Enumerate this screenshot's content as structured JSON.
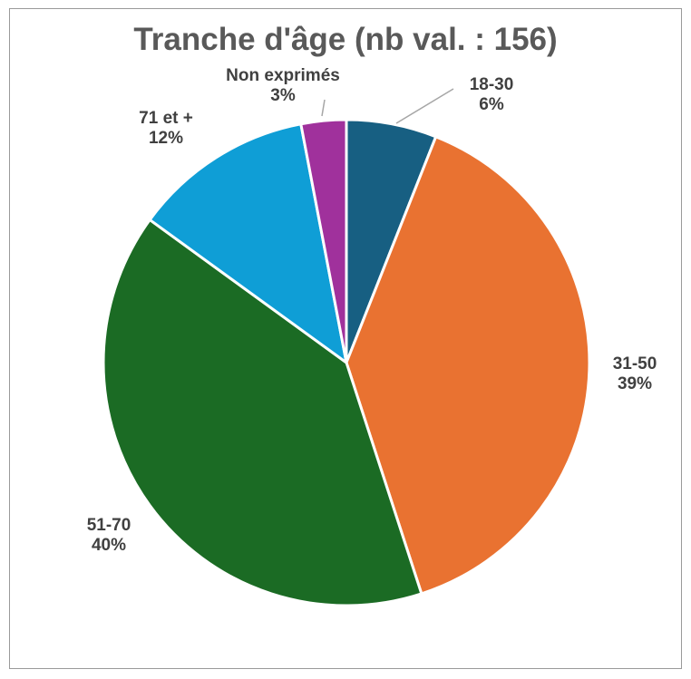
{
  "chart_data": {
    "type": "pie",
    "title": "Tranche d'âge (nb val. : 156)",
    "slices": [
      {
        "label": "18-30",
        "value": 6,
        "display": "6%",
        "color": "#175f82"
      },
      {
        "label": "31-50",
        "value": 39,
        "display": "39%",
        "color": "#e97231"
      },
      {
        "label": "51-70",
        "value": 40,
        "display": "40%",
        "color": "#1b6b24"
      },
      {
        "label": "71 et +",
        "value": 12,
        "display": "12%",
        "color": "#0f9ed6"
      },
      {
        "label": "Non exprimés",
        "value": 3,
        "display": "3%",
        "color": "#a0319c"
      }
    ],
    "start_angle": "12 o'clock",
    "direction": "clockwise",
    "legend": "none"
  }
}
